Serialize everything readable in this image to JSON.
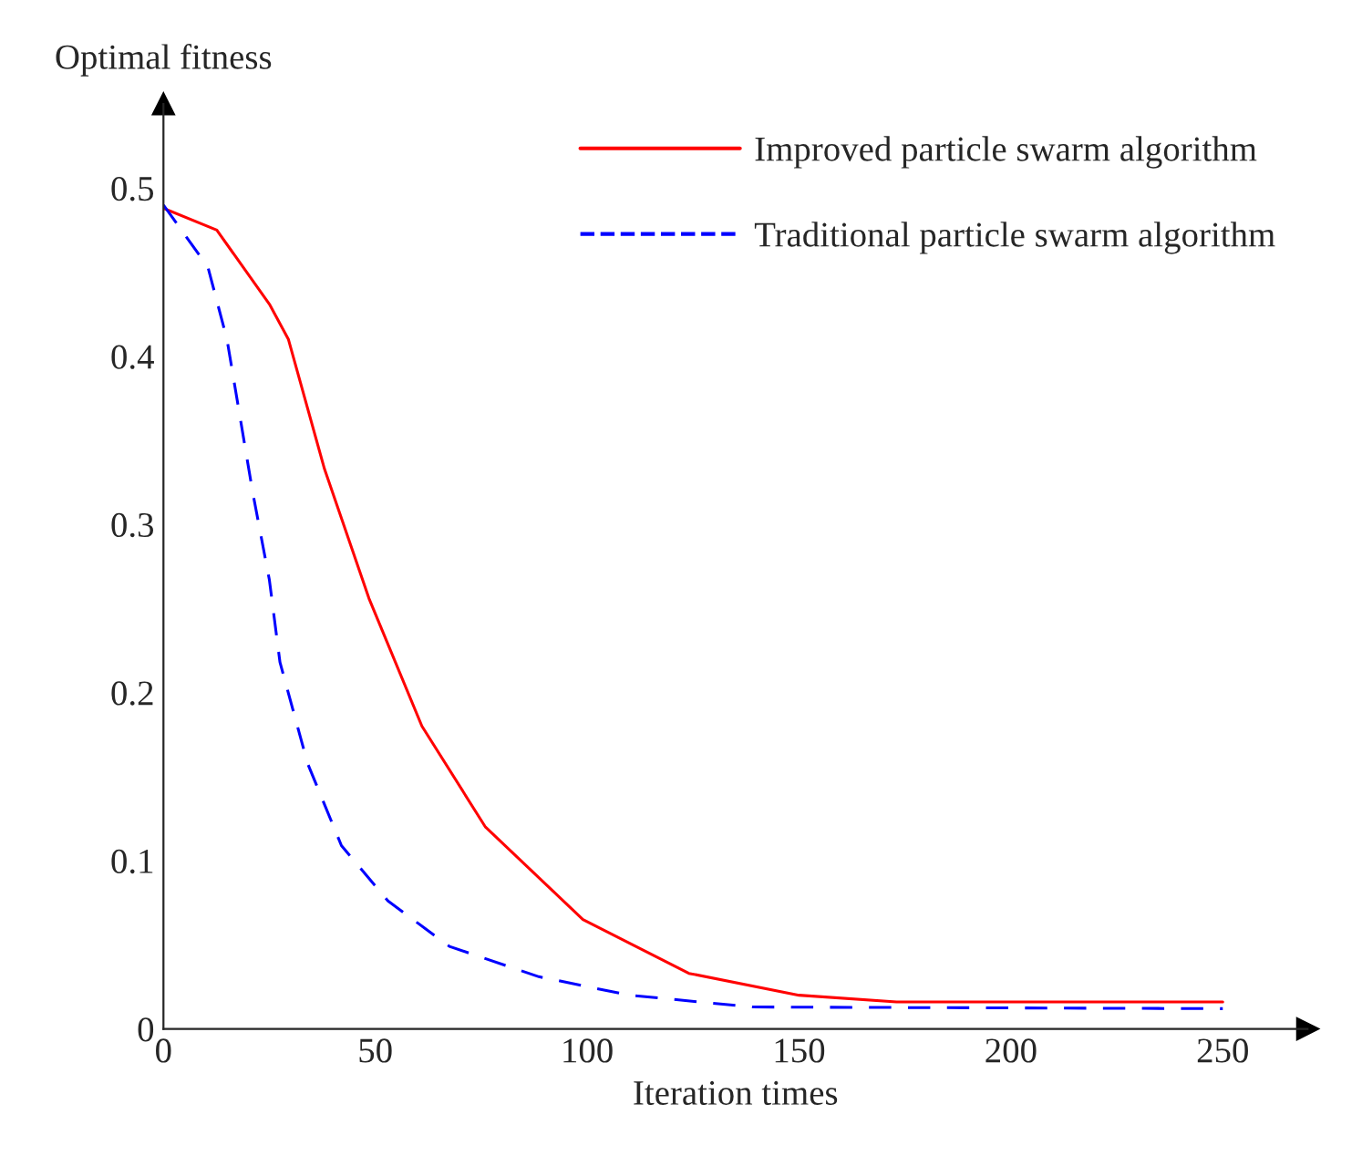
{
  "chart_data": {
    "type": "line",
    "xlabel": "Iteration times",
    "ylabel": "Optimal fitness",
    "xlim": [
      0,
      270
    ],
    "ylim": [
      0,
      0.55
    ],
    "xticks": [
      0,
      50,
      100,
      150,
      200,
      250
    ],
    "yticks": [
      0,
      0.1,
      0.2,
      0.3,
      0.4,
      0.5
    ],
    "grid": false,
    "legend": "top right",
    "marker": "none",
    "series": [
      {
        "name": "Improved particle swarm algorithm",
        "color": "#ff0000",
        "line_style": "solid",
        "x": [
          0,
          12.6,
          25,
          29.5,
          38,
          48.5,
          61,
          76,
          99,
          124,
          150,
          173,
          250
        ],
        "values": [
          0.488,
          0.475,
          0.431,
          0.41,
          0.333,
          0.256,
          0.18,
          0.12,
          0.065,
          0.033,
          0.02,
          0.016,
          0.016
        ]
      },
      {
        "name": "Traditional particle swarm algorithm",
        "color": "#0000ff",
        "line_style": "dashed",
        "x": [
          0,
          10.5,
          15,
          21,
          25,
          27.5,
          34,
          42,
          53,
          67.5,
          88.6,
          110,
          139,
          250
        ],
        "values": [
          0.49,
          0.453,
          0.41,
          0.32,
          0.267,
          0.218,
          0.158,
          0.109,
          0.076,
          0.049,
          0.031,
          0.02,
          0.013,
          0.012
        ]
      }
    ]
  }
}
